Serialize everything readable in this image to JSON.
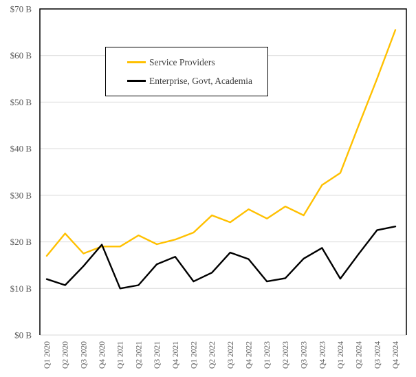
{
  "chart_data": {
    "type": "line",
    "title": "",
    "xlabel": "",
    "ylabel": "",
    "ylim": [
      0,
      70
    ],
    "y_tick_step": 10,
    "y_tick_labels": [
      "$0 B",
      "$10 B",
      "$20 B",
      "$30 B",
      "$40 B",
      "$50 B",
      "$60 B",
      "$70 B"
    ],
    "grid": true,
    "legend_position": "inside-top-center",
    "categories": [
      "Q1 2020",
      "Q2 2020",
      "Q3 2020",
      "Q4 2020",
      "Q1 2021",
      "Q2 2021",
      "Q3 2021",
      "Q4 2021",
      "Q1 2022",
      "Q2 2022",
      "Q3 2022",
      "Q4 2022",
      "Q1 2023",
      "Q2 2023",
      "Q3 2023",
      "Q4 2023",
      "Q1 2024",
      "Q2 2024",
      "Q3 2024",
      "Q4 2024"
    ],
    "series": [
      {
        "name": "Service Providers",
        "color": "#FFC000",
        "values": [
          17.0,
          21.8,
          17.5,
          19.0,
          19.0,
          21.4,
          19.5,
          20.5,
          22.0,
          25.7,
          24.2,
          27.0,
          25.0,
          27.6,
          25.7,
          32.2,
          34.8,
          45.0,
          55.0,
          65.5
        ]
      },
      {
        "name": "Enterprise, Govt, Academia",
        "color": "#000000",
        "values": [
          12.0,
          10.7,
          14.8,
          19.4,
          10.0,
          10.7,
          15.2,
          16.8,
          11.5,
          13.4,
          17.7,
          16.3,
          11.5,
          12.2,
          16.4,
          18.7,
          12.1,
          17.4,
          22.5,
          23.3
        ]
      }
    ]
  },
  "colors": {
    "background": "#FFFFFF",
    "gridline": "#D9D9D9",
    "plot_border": "#000000",
    "axis_text": "#595959",
    "legend_text": "#404040"
  }
}
